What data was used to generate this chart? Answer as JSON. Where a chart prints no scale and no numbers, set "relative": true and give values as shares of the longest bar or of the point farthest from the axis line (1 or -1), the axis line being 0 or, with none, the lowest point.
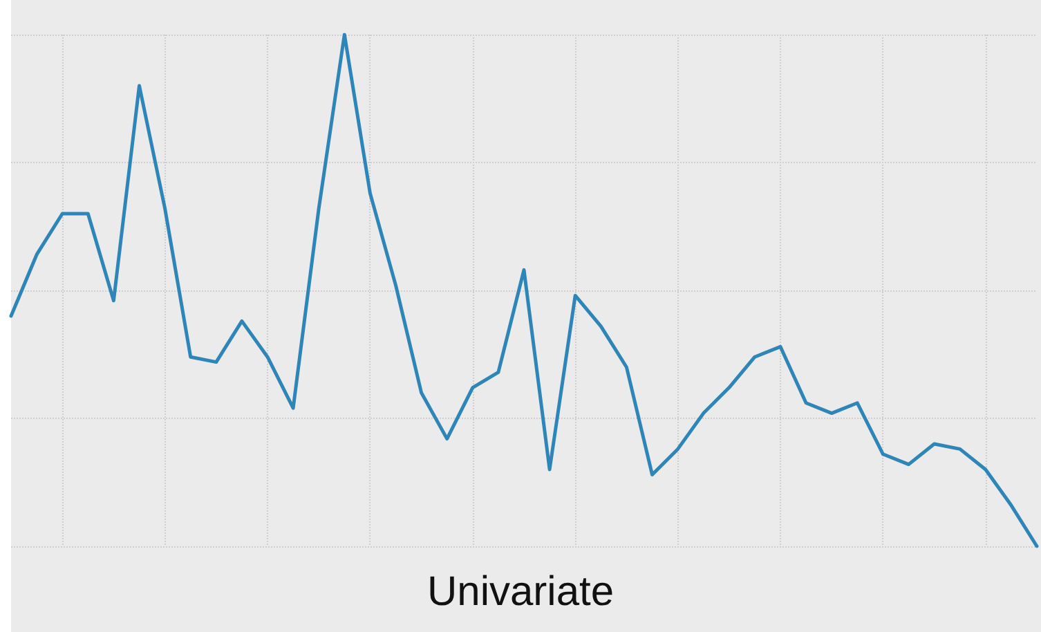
{
  "chart_data": {
    "type": "line",
    "relative": true,
    "grid": true,
    "marker": "none",
    "line_style": "solid",
    "categories": [
      null,
      null,
      null,
      null,
      null,
      null,
      null,
      null,
      null,
      null,
      null,
      null,
      null,
      null,
      null,
      null,
      null,
      null,
      null,
      null,
      null,
      null,
      null,
      null,
      null,
      null,
      null,
      null,
      null,
      null,
      null,
      null,
      null,
      null,
      null,
      null,
      null,
      null,
      null,
      null,
      null
    ],
    "series": [
      {
        "color": "#2e86b8",
        "values": [
          0.45,
          0.57,
          0.65,
          0.65,
          0.48,
          0.9,
          0.66,
          0.37,
          0.36,
          0.44,
          0.37,
          0.27,
          0.66,
          1,
          0.69,
          0.51,
          0.3,
          0.21,
          0.31,
          0.34,
          0.54,
          0.15,
          0.49,
          0.43,
          0.35,
          0.14,
          0.19,
          0.26,
          0.31,
          0.37,
          0.39,
          0.28,
          0.26,
          0.28,
          0.18,
          0.16,
          0.2,
          0.19,
          0.15,
          0.08,
          0
        ]
      }
    ],
    "annotations": [
      "Univariate"
    ]
  }
}
